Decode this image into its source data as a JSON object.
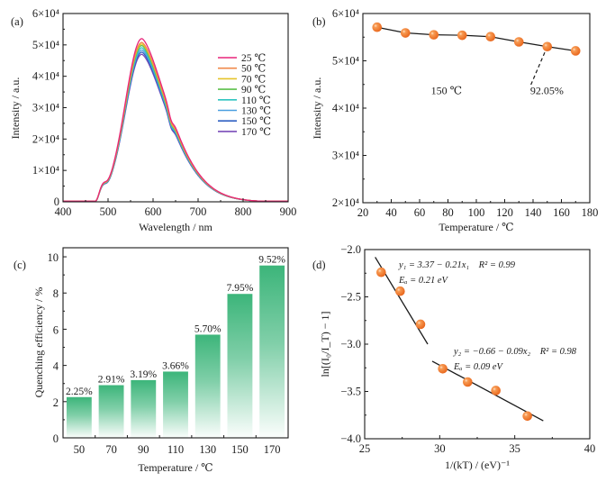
{
  "chart_data": [
    {
      "panel": "(a)",
      "type": "line",
      "xlabel": "Wavelength / nm",
      "ylabel": "Intensity / a.u.",
      "xlim": [
        400,
        900
      ],
      "ylim": [
        0,
        60000
      ],
      "xticks": [
        "400",
        "500",
        "600",
        "700",
        "800",
        "900"
      ],
      "yticks": [
        "0",
        "1×10⁴",
        "2×10⁴",
        "3×10⁴",
        "4×10⁴",
        "5×10⁴",
        "6×10⁴"
      ],
      "ytick_values": [
        0,
        10000,
        20000,
        30000,
        40000,
        50000,
        60000
      ],
      "xtick_values": [
        400,
        500,
        600,
        700,
        800,
        900
      ],
      "legend_position": "right",
      "onset_nm": 470,
      "peak_nm": 575,
      "series": [
        {
          "name": "25 ℃",
          "color": "#e8257a",
          "peak": 52000
        },
        {
          "name": "50 ℃",
          "color": "#f08a4b",
          "peak": 50800
        },
        {
          "name": "70 ℃",
          "color": "#e6c42a",
          "peak": 50300
        },
        {
          "name": "90 ℃",
          "color": "#5cbf4a",
          "peak": 49800
        },
        {
          "name": "110 ℃",
          "color": "#2ec4c0",
          "peak": 49100
        },
        {
          "name": "130 ℃",
          "color": "#4a9fe0",
          "peak": 48400
        },
        {
          "name": "150 ℃",
          "color": "#2f5fc2",
          "peak": 47700
        },
        {
          "name": "170 ℃",
          "color": "#7a4bb8",
          "peak": 47000
        }
      ]
    },
    {
      "panel": "(b)",
      "type": "line",
      "xlabel": "Temperature / ℃",
      "ylabel": "Intensity / a.u.",
      "xlim": [
        20,
        180
      ],
      "ylim": [
        20000,
        60000
      ],
      "xticks": [
        "20",
        "40",
        "60",
        "80",
        "100",
        "120",
        "140",
        "160",
        "180"
      ],
      "xtick_values": [
        20,
        40,
        60,
        80,
        100,
        120,
        140,
        160,
        180
      ],
      "yticks": [
        "2×10⁴",
        "3×10⁴",
        "4×10⁴",
        "5×10⁴",
        "6×10⁴"
      ],
      "ytick_values": [
        20000,
        30000,
        40000,
        50000,
        60000
      ],
      "x": [
        30,
        50,
        70,
        90,
        110,
        130,
        150,
        170
      ],
      "values": [
        57100,
        55900,
        55500,
        55400,
        55100,
        54000,
        53000,
        52100
      ],
      "marker_color": "#f07a2a",
      "annotations": [
        {
          "text": "150 ℃",
          "x": 68,
          "y": 43000
        },
        {
          "text": "92.05%",
          "x": 138,
          "y": 43000
        }
      ],
      "pointer": {
        "from": [
          150,
          53000
        ],
        "to": [
          138,
          44600
        ]
      }
    },
    {
      "panel": "(c)",
      "type": "bar",
      "xlabel": "Temperature / ℃",
      "ylabel": "Quenching efficiency / %",
      "ylim": [
        0,
        10.5
      ],
      "yticks": [
        "0",
        "2",
        "4",
        "6",
        "8",
        "10"
      ],
      "ytick_values": [
        0,
        2,
        4,
        6,
        8,
        10
      ],
      "categories": [
        "50",
        "70",
        "90",
        "110",
        "130",
        "150",
        "170"
      ],
      "values": [
        2.25,
        2.91,
        3.19,
        3.66,
        5.7,
        7.95,
        9.52
      ],
      "data_labels": [
        "2.25%",
        "2.91%",
        "3.19%",
        "3.66%",
        "5.70%",
        "7.95%",
        "9.52%"
      ],
      "bar_color": "#3cb57a"
    },
    {
      "panel": "(d)",
      "type": "scatter",
      "xlabel": "1/(kT) / (eV)⁻¹",
      "ylabel": "ln[(I₀/I_T) − 1]",
      "xlim": [
        25,
        40
      ],
      "ylim": [
        -4.0,
        -2.0
      ],
      "xticks": [
        "25",
        "30",
        "35",
        "40"
      ],
      "xtick_values": [
        25,
        30,
        35,
        40
      ],
      "yticks": [
        "−4.0",
        "−3.5",
        "−3.0",
        "−2.5",
        "−2.0"
      ],
      "ytick_values": [
        -4.0,
        -3.5,
        -3.0,
        -2.5,
        -2.0
      ],
      "x": [
        26.1,
        27.36,
        28.72,
        30.2,
        31.86,
        33.74,
        35.84
      ],
      "y": [
        -2.24,
        -2.44,
        -2.79,
        -3.26,
        -3.4,
        -3.49,
        -3.76
      ],
      "marker_color": "#f07a2a",
      "fits": [
        {
          "name": "fit-1",
          "x_range": [
            25.7,
            29.2
          ],
          "y_range": [
            -2.08,
            -3.0
          ],
          "equation": "y₁ = 3.37 − 0.21x₁",
          "r2": "R² = 0.99",
          "ea": "Eₐ = 0.21 eV"
        },
        {
          "name": "fit-2",
          "x_range": [
            29.5,
            36.9
          ],
          "y_range": [
            -3.18,
            -3.81
          ],
          "equation": "y₂ = −0.66 − 0.09x₂",
          "r2": "R² = 0.98",
          "ea": "Eₐ = 0.09 eV"
        }
      ]
    }
  ]
}
